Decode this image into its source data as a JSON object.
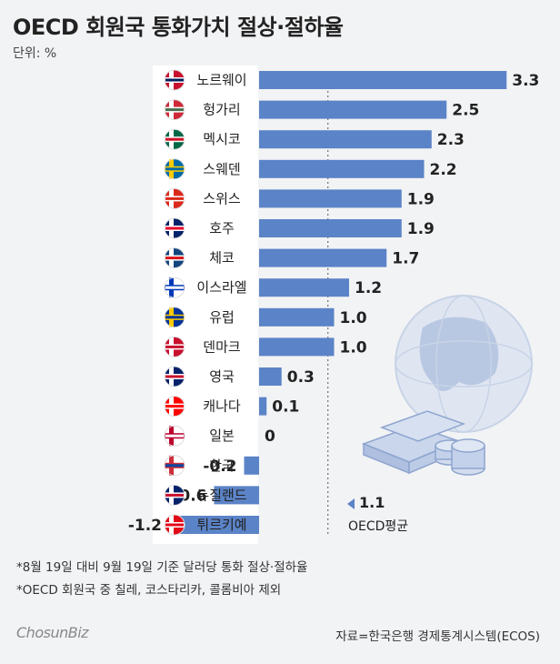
{
  "title": "OECD 회원국 통화가치 절상·절하율",
  "unit": "단위: %",
  "chart_data": {
    "type": "bar",
    "orientation": "horizontal",
    "categories": [
      "노르웨이",
      "헝가리",
      "멕시코",
      "스웨덴",
      "스위스",
      "호주",
      "체코",
      "이스라엘",
      "유럽",
      "덴마크",
      "영국",
      "캐나다",
      "일본",
      "한국",
      "뉴질랜드",
      "튀르키예"
    ],
    "values": [
      3.3,
      2.5,
      2.3,
      2.2,
      1.9,
      1.9,
      1.7,
      1.2,
      1.0,
      1.0,
      0.3,
      0.1,
      0,
      -0.2,
      -0.6,
      -1.2
    ],
    "value_labels": [
      "3.3",
      "2.5",
      "2.3",
      "2.2",
      "1.9",
      "1.9",
      "1.7",
      "1.2",
      "1.0",
      "1.0",
      "0.3",
      "0.1",
      "0",
      "-0.2",
      "-0.6",
      "-1.2"
    ],
    "xlim": [
      -1.2,
      3.3
    ],
    "reference_line": {
      "value": 1.1,
      "label_value": "1.1",
      "label": "OECD평균"
    },
    "colors": {
      "bar": "#5b83c7",
      "reference_line": "#555555"
    }
  },
  "flags": [
    "norway-flag-icon",
    "hungary-flag-icon",
    "mexico-flag-icon",
    "sweden-flag-icon",
    "switzerland-flag-icon",
    "australia-flag-icon",
    "czech-flag-icon",
    "israel-flag-icon",
    "eu-flag-icon",
    "denmark-flag-icon",
    "uk-flag-icon",
    "canada-flag-icon",
    "japan-flag-icon",
    "korea-flag-icon",
    "new-zealand-flag-icon",
    "turkey-flag-icon"
  ],
  "notes": {
    "line1": "*8월 19일 대비 9월 19일 기준 달러당 통화 절상·절하율",
    "line2": "*OECD 회원국 중 칠레, 코스타리카, 콜롬비아 제외"
  },
  "footer": {
    "logo": "ChosunBiz",
    "source": "자료=한국은행 경제통계시스템(ECOS)"
  },
  "decor_icons": [
    "globe-icon",
    "stacked-coins-and-bills-icon"
  ]
}
